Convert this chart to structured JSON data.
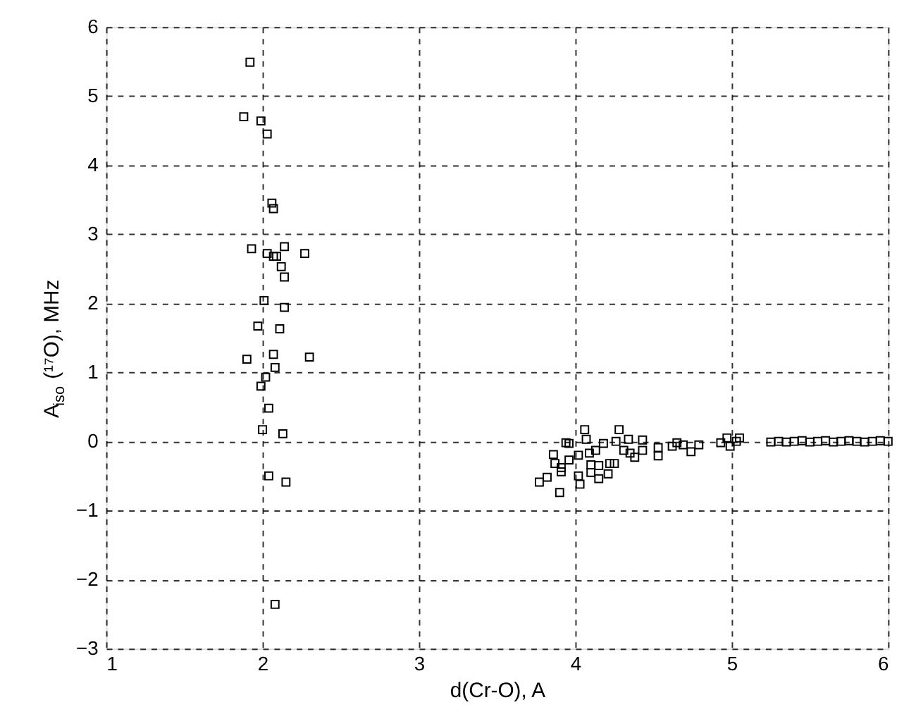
{
  "chart_data": {
    "type": "scatter",
    "xlabel": "d(Cr-O), A",
    "ylabel": "A$_{iso}$(¹⁷O), MHz",
    "xlim": [
      1,
      6
    ],
    "ylim": [
      -3,
      6
    ],
    "xticks": [
      1,
      2,
      3,
      4,
      5,
      6
    ],
    "yticks": [
      -3,
      -2,
      -1,
      0,
      1,
      2,
      3,
      4,
      5,
      6
    ],
    "grid": true,
    "marker": "square",
    "line_style": "dashed",
    "series": [
      {
        "color": "#000000",
        "x": [
          1.92,
          1.88,
          1.99,
          2.03,
          2.06,
          2.07,
          1.93,
          2.03,
          2.14,
          2.07,
          2.09,
          2.27,
          2.12,
          2.14,
          2.01,
          2.14,
          1.97,
          2.11,
          2.07,
          1.9,
          2.3,
          2.08,
          2.02,
          1.99,
          2.04,
          2.0,
          2.13,
          2.04,
          2.15,
          2.08,
          3.77,
          3.82,
          3.9,
          3.86,
          3.87,
          3.91,
          3.91,
          3.96,
          3.94,
          3.96,
          4.02,
          4.03,
          4.06,
          4.07,
          4.02,
          4.09,
          4.1,
          4.1,
          4.13,
          4.15,
          4.15,
          4.18,
          4.21,
          4.22,
          4.25,
          4.26,
          4.28,
          4.31,
          4.34,
          4.35,
          4.38,
          4.43,
          4.43,
          4.53,
          4.53,
          4.62,
          4.65,
          4.69,
          4.74,
          4.79,
          4.93,
          4.97,
          4.99,
          5.03,
          5.05,
          5.25,
          5.3,
          5.35,
          5.4,
          5.45,
          5.5,
          5.55,
          5.6,
          5.65,
          5.7,
          5.75,
          5.8,
          5.85,
          5.9,
          5.95,
          6.0
        ],
        "values": [
          5.49,
          4.7,
          4.64,
          4.45,
          3.45,
          3.37,
          2.79,
          2.72,
          2.82,
          2.68,
          2.68,
          2.72,
          2.53,
          2.38,
          2.04,
          1.94,
          1.67,
          1.63,
          1.26,
          1.19,
          1.22,
          1.07,
          0.93,
          0.8,
          0.48,
          0.17,
          0.11,
          -0.5,
          -0.59,
          -2.36,
          -0.59,
          -0.52,
          -0.74,
          -0.19,
          -0.32,
          -0.44,
          -0.38,
          -0.27,
          -0.02,
          -0.03,
          -0.5,
          -0.62,
          0.17,
          0.03,
          -0.2,
          -0.17,
          -0.34,
          -0.45,
          -0.13,
          -0.35,
          -0.54,
          -0.03,
          -0.47,
          -0.32,
          -0.32,
          0.0,
          0.17,
          -0.13,
          0.03,
          -0.17,
          -0.23,
          0.02,
          -0.13,
          -0.09,
          -0.21,
          -0.07,
          -0.02,
          -0.05,
          -0.15,
          -0.05,
          -0.02,
          0.05,
          -0.07,
          0.0,
          0.05,
          -0.01,
          0.0,
          -0.01,
          0.0,
          0.01,
          -0.01,
          0.0,
          0.01,
          -0.01,
          0.0,
          0.01,
          0.0,
          -0.01,
          0.0,
          0.01,
          0.0
        ]
      }
    ]
  }
}
